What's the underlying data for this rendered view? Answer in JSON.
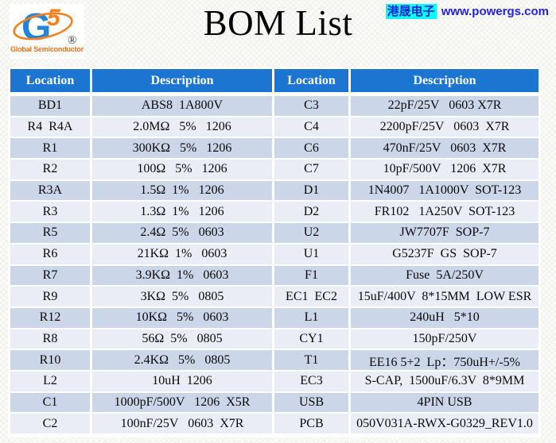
{
  "page": {
    "title": "BOM List",
    "site": {
      "brand": "港晟电子",
      "url": "www.powergs.com"
    },
    "logo": {
      "monogram_g": "G",
      "monogram_5": "5",
      "registered_mark": "®",
      "caption": "Global Semiconductor"
    }
  },
  "colors": {
    "header_blue": "#1b75d1",
    "row_light_blue": "#ccd6e9",
    "row_pale_blue": "#eaedf5",
    "link_blue": "#2222e8",
    "highlight_cyan": "#00ffff",
    "logo_blue": "#2286d8",
    "logo_orange": "#f5821f"
  },
  "table": {
    "columns": [
      "Location",
      "Description",
      "Location",
      "Description"
    ],
    "rows": [
      {
        "loc1": "BD1",
        "desc1": "ABS8  1A800V",
        "loc2": "C3",
        "desc2": "22pF/25V   0603 X7R"
      },
      {
        "loc1": "R4  R4A",
        "desc1": "2.0MΩ   5%   1206",
        "loc2": "C4",
        "desc2": "2200pF/25V   0603  X7R"
      },
      {
        "loc1": "R1",
        "desc1": "300KΩ   5%   1206",
        "loc2": "C6",
        "desc2": "470nF/25V   0603  X7R"
      },
      {
        "loc1": "R2",
        "desc1": "100Ω   5%   1206",
        "loc2": "C7",
        "desc2": "10pF/500V   1206  X7R"
      },
      {
        "loc1": "R3A",
        "desc1": "1.5Ω  1%   1206",
        "loc2": "D1",
        "desc2": "1N4007   1A1000V  SOT-123"
      },
      {
        "loc1": "R3",
        "desc1": "1.3Ω  1%   1206",
        "loc2": "D2",
        "desc2": "FR102   1A250V  SOT-123"
      },
      {
        "loc1": "R5",
        "desc1": "2.4Ω  5%   0603",
        "loc2": "U2",
        "desc2": "JW7707F  SOP-7"
      },
      {
        "loc1": "R6",
        "desc1": "21KΩ  1%   0603",
        "loc2": "U1",
        "desc2": "G5237F  GS  SOP-7"
      },
      {
        "loc1": "R7",
        "desc1": "3.9KΩ  1%   0603",
        "loc2": "F1",
        "desc2": "Fuse  5A/250V"
      },
      {
        "loc1": "R9",
        "desc1": "3KΩ  5%   0805",
        "loc2": "EC1  EC2",
        "desc2": "15uF/400V  8*15MM  LOW ESR"
      },
      {
        "loc1": "R12",
        "desc1": "10KΩ   5%   0603",
        "loc2": "L1",
        "desc2": "240uH   5*10"
      },
      {
        "loc1": "R8",
        "desc1": "56Ω  5%   0805",
        "loc2": "CY1",
        "desc2": "150pF/250V"
      },
      {
        "loc1": "R10",
        "desc1": "2.4KΩ   5%   0805",
        "loc2": "T1",
        "desc2": "EE16 5+2  Lp：750uH+/-5%"
      },
      {
        "loc1": "L2",
        "desc1": "10uH  1206",
        "loc2": "EC3",
        "desc2": "S-CAP,  1500uF/6.3V  8*9MM"
      },
      {
        "loc1": "C1",
        "desc1": "1000pF/500V   1206  X5R",
        "loc2": "USB",
        "desc2": "4PIN USB"
      },
      {
        "loc1": "C2",
        "desc1": "100nF/25V   0603  X7R",
        "loc2": "PCB",
        "desc2": "050V031A-RWX-G0329_REV1.0"
      }
    ]
  }
}
